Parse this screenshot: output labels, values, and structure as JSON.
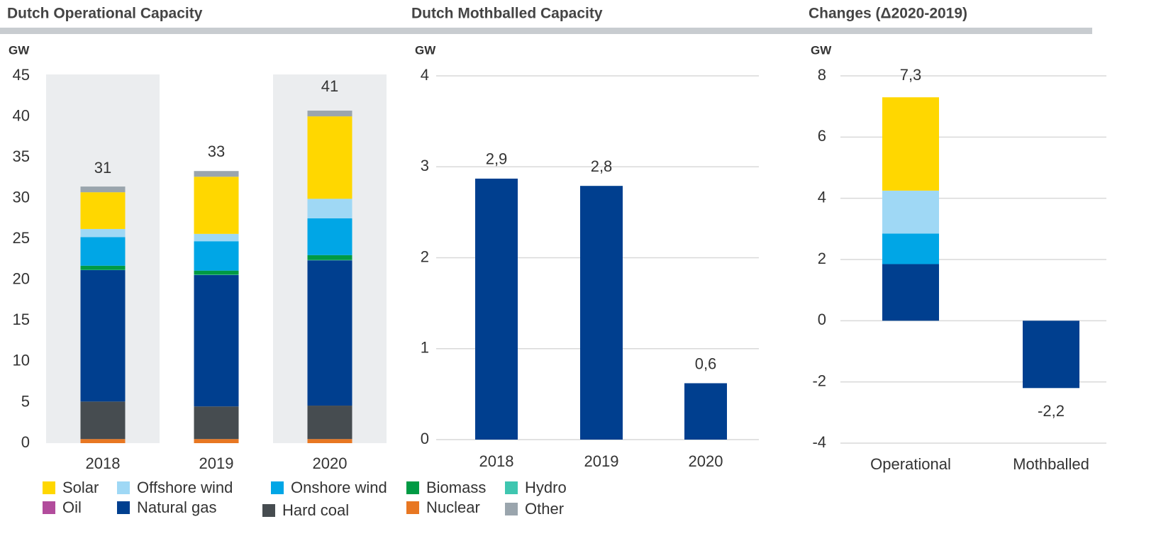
{
  "chart_data": [
    {
      "type": "stacked_bar",
      "title": "Dutch Operational Capacity",
      "ylabel": "GW",
      "categories": [
        "2018",
        "2019",
        "2020"
      ],
      "ylim": [
        0,
        45
      ],
      "yticks": [
        0,
        5,
        10,
        15,
        20,
        25,
        30,
        35,
        40,
        45
      ],
      "grid": false,
      "totals": [
        31,
        33,
        41
      ],
      "series": [
        {
          "name": "Nuclear",
          "color": "#e87722",
          "values": [
            0.5,
            0.5,
            0.5
          ]
        },
        {
          "name": "Hard coal",
          "color": "#464c50",
          "values": [
            4.6,
            4.0,
            4.1
          ]
        },
        {
          "name": "Natural gas",
          "color": "#003f8f",
          "values": [
            16.1,
            16.1,
            17.8
          ]
        },
        {
          "name": "Oil",
          "color": "#b24c9c",
          "values": [
            0,
            0,
            0
          ]
        },
        {
          "name": "Hydro",
          "color": "#3fc6b0",
          "values": [
            0.04,
            0.04,
            0.04
          ]
        },
        {
          "name": "Biomass",
          "color": "#009a44",
          "values": [
            0.5,
            0.5,
            0.6
          ]
        },
        {
          "name": "Onshore wind",
          "color": "#00a6e6",
          "values": [
            3.5,
            3.6,
            4.5
          ]
        },
        {
          "name": "Offshore wind",
          "color": "#9fd8f5",
          "values": [
            1.0,
            0.9,
            2.4
          ]
        },
        {
          "name": "Solar",
          "color": "#ffd700",
          "values": [
            4.5,
            7.0,
            10.1
          ]
        },
        {
          "name": "Other",
          "color": "#9aa5ad",
          "values": [
            0.7,
            0.7,
            0.7
          ]
        }
      ]
    },
    {
      "type": "bar",
      "title": "Dutch Mothballed Capacity",
      "ylabel": "GW",
      "categories": [
        "2018",
        "2019",
        "2020"
      ],
      "values": [
        2.87,
        2.79,
        0.62
      ],
      "value_labels": [
        "2,9",
        "2,8",
        "0,6"
      ],
      "color": "#003f8f",
      "ylim": [
        0,
        4
      ],
      "yticks": [
        0,
        1,
        2,
        3,
        4
      ],
      "grid": true
    },
    {
      "type": "stacked_bar",
      "title": "Changes (Δ2020-2019)",
      "ylabel": "GW",
      "categories": [
        "Operational",
        "Mothballed"
      ],
      "ylim": [
        -4,
        8
      ],
      "yticks": [
        -4,
        -2,
        0,
        2,
        4,
        6,
        8
      ],
      "grid": true,
      "totals": [
        7.3,
        -2.2
      ],
      "value_labels": [
        "7,3",
        "-2,2"
      ],
      "series": [
        {
          "color": "#003f8f",
          "values": [
            1.85,
            -2.2
          ]
        },
        {
          "color": "#00a6e6",
          "values": [
            1.0,
            0
          ]
        },
        {
          "color": "#9fd8f5",
          "values": [
            1.4,
            0
          ]
        },
        {
          "color": "#ffd700",
          "values": [
            3.05,
            0
          ]
        }
      ]
    }
  ]
}
